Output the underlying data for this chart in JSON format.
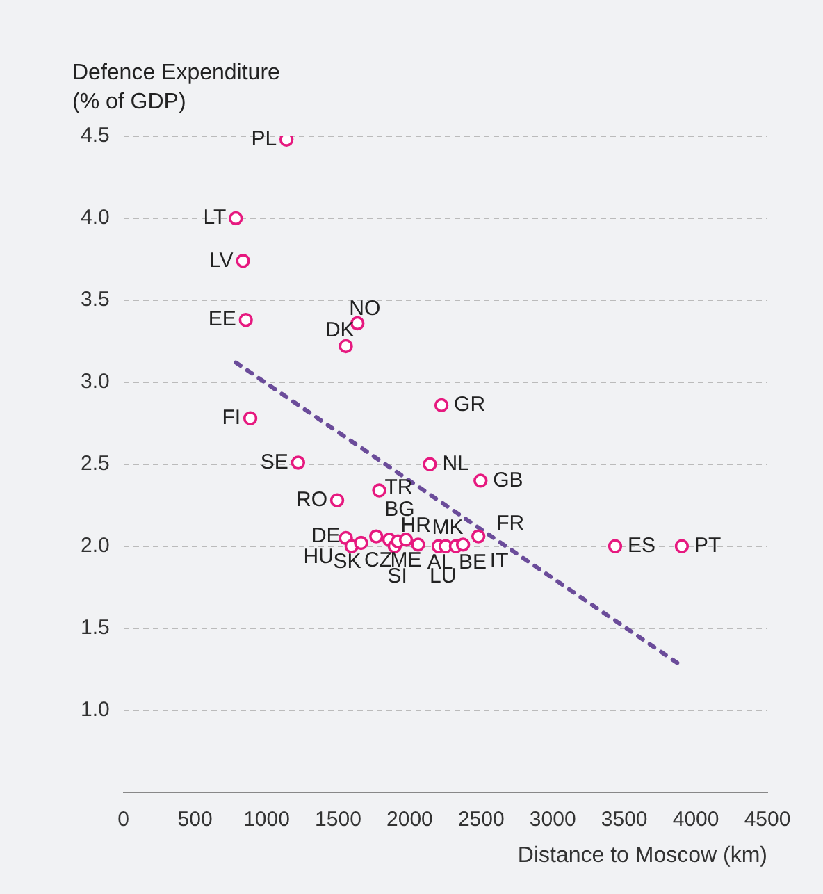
{
  "chart_data": {
    "type": "scatter",
    "ylabel": "Defence Expenditure\n(% of GDP)",
    "xlabel": "Distance to Moscow (km)",
    "series": [
      {
        "type": "scatter",
        "marker": "circle",
        "color": "#e6197f",
        "x": [
          1139,
          785,
          835,
          855,
          1635,
          1554,
          886,
          2222,
          1220,
          2141,
          2495,
          1493,
          1787,
          3436,
          3902,
          1554,
          1594,
          1660,
          1766,
          1857,
          1895,
          1918,
          1974,
          2059,
          2202,
          2252,
          2323,
          2480,
          2373
        ],
        "values": [
          4.48,
          4.0,
          3.74,
          3.38,
          3.36,
          3.22,
          2.78,
          2.86,
          2.51,
          2.5,
          2.4,
          2.28,
          2.34,
          2.0,
          2.0,
          2.05,
          2.0,
          2.02,
          2.06,
          2.04,
          2.0,
          2.03,
          2.04,
          2.01,
          2.0,
          2.0,
          2.0,
          2.06,
          2.01
        ]
      },
      {
        "type": "line",
        "color": "#6b4c9a",
        "line_style": "dotted",
        "x": [
          785,
          3902
        ],
        "values": [
          3.12,
          1.27
        ]
      }
    ],
    "annotations": [
      {
        "text": "PL",
        "x": 1139,
        "y": 4.48
      },
      {
        "text": "LT",
        "x": 785,
        "y": 4.0
      },
      {
        "text": "LV",
        "x": 835,
        "y": 3.74
      },
      {
        "text": "EE",
        "x": 855,
        "y": 3.38
      },
      {
        "text": "NO",
        "x": 1635,
        "y": 3.36
      },
      {
        "text": "DK",
        "x": 1554,
        "y": 3.22
      },
      {
        "text": "FI",
        "x": 886,
        "y": 2.78
      },
      {
        "text": "GR",
        "x": 2222,
        "y": 2.86
      },
      {
        "text": "SE",
        "x": 1220,
        "y": 2.51
      },
      {
        "text": "NL",
        "x": 2141,
        "y": 2.5
      },
      {
        "text": "GB",
        "x": 2495,
        "y": 2.4
      },
      {
        "text": "RO",
        "x": 1493,
        "y": 2.28
      },
      {
        "text": "TR",
        "x": 1787,
        "y": 2.34
      },
      {
        "text": "ES",
        "x": 3436,
        "y": 2.0
      },
      {
        "text": "PT",
        "x": 3902,
        "y": 2.0
      },
      {
        "text": "DE",
        "x": 1554,
        "y": 2.05
      },
      {
        "text": "HU",
        "x": 1594,
        "y": 2.0
      },
      {
        "text": "SK",
        "x": 1660,
        "y": 2.02
      },
      {
        "text": "BG",
        "x": 1766,
        "y": 2.06
      },
      {
        "text": "CZ",
        "x": 1857,
        "y": 2.04
      },
      {
        "text": "SI",
        "x": 1895,
        "y": 2.0
      },
      {
        "text": "HR",
        "x": 1918,
        "y": 2.03
      },
      {
        "text": "ME",
        "x": 1974,
        "y": 2.04
      },
      {
        "text": "MK",
        "x": 2059,
        "y": 2.01
      },
      {
        "text": "AL",
        "x": 2202,
        "y": 2.0
      },
      {
        "text": "LU",
        "x": 2252,
        "y": 2.0
      },
      {
        "text": "BE",
        "x": 2323,
        "y": 2.0
      },
      {
        "text": "FR",
        "x": 2480,
        "y": 2.06
      },
      {
        "text": "IT",
        "x": 2373,
        "y": 2.01
      }
    ],
    "xlim": [
      0,
      4500
    ],
    "xticks": [
      0,
      500,
      1000,
      1500,
      2000,
      2500,
      3000,
      3500,
      4000,
      4500
    ],
    "ylim": [
      0.5,
      4.5
    ],
    "yticks": [
      {
        "value": 1,
        "label": "1.0"
      },
      {
        "value": 1.5,
        "label": "1.5"
      },
      {
        "value": 2,
        "label": "2.0"
      },
      {
        "value": 2.5,
        "label": "2.5"
      },
      {
        "value": 3,
        "label": "3.0"
      },
      {
        "value": 3.5,
        "label": "3.5"
      },
      {
        "value": 4,
        "label": "4.0"
      },
      {
        "value": 4.5,
        "label": "4.5"
      }
    ],
    "grid": "y",
    "legend": false
  }
}
